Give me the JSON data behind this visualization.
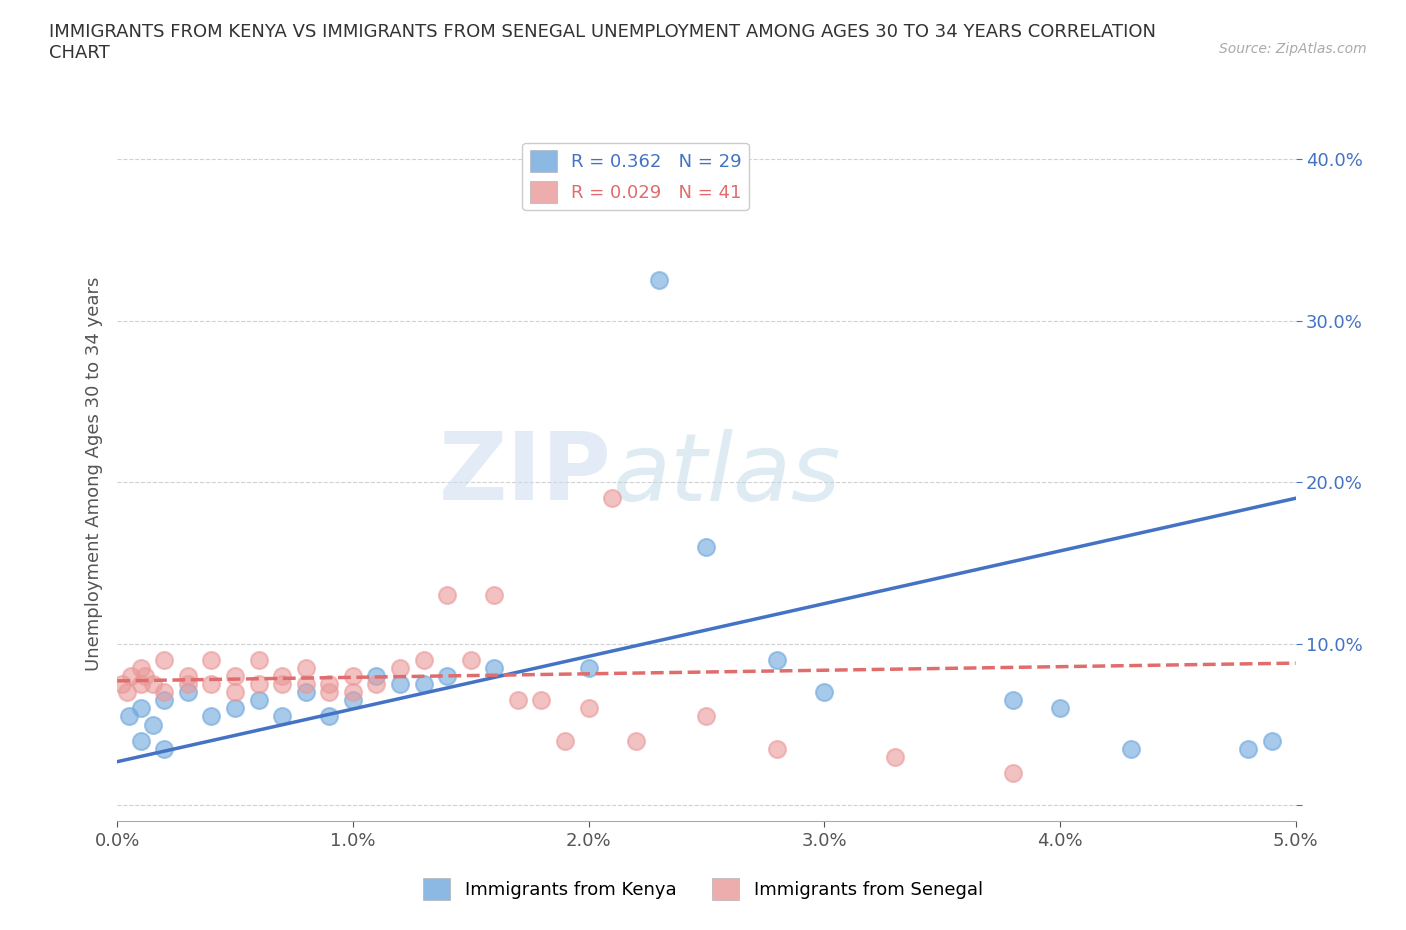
{
  "title": "IMMIGRANTS FROM KENYA VS IMMIGRANTS FROM SENEGAL UNEMPLOYMENT AMONG AGES 30 TO 34 YEARS CORRELATION\nCHART",
  "source": "Source: ZipAtlas.com",
  "ylabel": "Unemployment Among Ages 30 to 34 years",
  "xlim": [
    0.0,
    0.05
  ],
  "ylim": [
    -0.01,
    0.42
  ],
  "xticks": [
    0.0,
    0.01,
    0.02,
    0.03,
    0.04,
    0.05
  ],
  "yticks": [
    0.0,
    0.1,
    0.2,
    0.3,
    0.4
  ],
  "xtick_labels": [
    "0.0%",
    "1.0%",
    "2.0%",
    "3.0%",
    "4.0%",
    "5.0%"
  ],
  "ytick_labels": [
    "",
    "10.0%",
    "20.0%",
    "30.0%",
    "40.0%"
  ],
  "kenya_color": "#6fa8dc",
  "senegal_color": "#ea9999",
  "kenya_line_color": "#4472c4",
  "senegal_line_color": "#e06c6c",
  "legend_kenya_R": "0.362",
  "legend_kenya_N": "29",
  "legend_senegal_R": "0.029",
  "legend_senegal_N": "41",
  "watermark_zip": "ZIP",
  "watermark_atlas": "atlas",
  "background_color": "#ffffff",
  "kenya_x": [
    0.0005,
    0.001,
    0.001,
    0.0015,
    0.002,
    0.002,
    0.003,
    0.004,
    0.005,
    0.006,
    0.007,
    0.008,
    0.009,
    0.01,
    0.011,
    0.012,
    0.013,
    0.014,
    0.016,
    0.02,
    0.023,
    0.025,
    0.028,
    0.03,
    0.038,
    0.04,
    0.043,
    0.048,
    0.049
  ],
  "kenya_y": [
    0.055,
    0.06,
    0.04,
    0.05,
    0.065,
    0.035,
    0.07,
    0.055,
    0.06,
    0.065,
    0.055,
    0.07,
    0.055,
    0.065,
    0.08,
    0.075,
    0.075,
    0.08,
    0.085,
    0.085,
    0.325,
    0.16,
    0.09,
    0.07,
    0.065,
    0.06,
    0.035,
    0.035,
    0.04
  ],
  "senegal_x": [
    0.0002,
    0.0004,
    0.0006,
    0.001,
    0.001,
    0.0012,
    0.0015,
    0.002,
    0.002,
    0.003,
    0.003,
    0.004,
    0.004,
    0.005,
    0.005,
    0.006,
    0.006,
    0.007,
    0.007,
    0.008,
    0.008,
    0.009,
    0.009,
    0.01,
    0.01,
    0.011,
    0.012,
    0.013,
    0.014,
    0.015,
    0.016,
    0.017,
    0.018,
    0.019,
    0.02,
    0.021,
    0.022,
    0.025,
    0.028,
    0.033,
    0.038
  ],
  "senegal_y": [
    0.075,
    0.07,
    0.08,
    0.075,
    0.085,
    0.08,
    0.075,
    0.09,
    0.07,
    0.08,
    0.075,
    0.09,
    0.075,
    0.08,
    0.07,
    0.075,
    0.09,
    0.075,
    0.08,
    0.075,
    0.085,
    0.07,
    0.075,
    0.08,
    0.07,
    0.075,
    0.085,
    0.09,
    0.13,
    0.09,
    0.13,
    0.065,
    0.065,
    0.04,
    0.06,
    0.19,
    0.04,
    0.055,
    0.035,
    0.03,
    0.02
  ],
  "kenya_trend_x": [
    0.0,
    0.05
  ],
  "kenya_trend_y": [
    0.027,
    0.19
  ],
  "senegal_trend_x": [
    0.0,
    0.05
  ],
  "senegal_trend_y": [
    0.077,
    0.088
  ]
}
